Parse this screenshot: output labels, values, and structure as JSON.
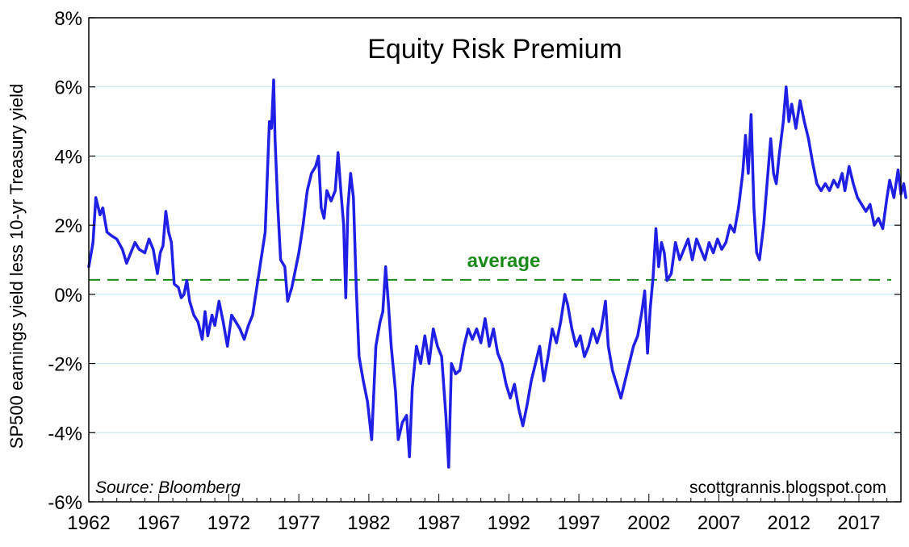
{
  "chart_data": {
    "type": "line",
    "title": "Equity Risk Premium",
    "ylabel": "SP500 earnings yield less 10-yr Treasury yield",
    "xlabel": "",
    "ylim": [
      -6,
      8
    ],
    "xlim": [
      1962,
      2020
    ],
    "y_ticks": [
      -6,
      -4,
      -2,
      0,
      2,
      4,
      6,
      8
    ],
    "y_tick_labels": [
      "-6%",
      "-4%",
      "-2%",
      "0%",
      "2%",
      "4%",
      "6%",
      "8%"
    ],
    "x_ticks": [
      1962,
      1967,
      1972,
      1977,
      1982,
      1987,
      1992,
      1997,
      2002,
      2007,
      2012,
      2017
    ],
    "x_tick_labels": [
      "1962",
      "1967",
      "1972",
      "1977",
      "1982",
      "1987",
      "1992",
      "1997",
      "2002",
      "2007",
      "2012",
      "2017"
    ],
    "grid": "horizontal",
    "source_note": "Source: Bloomberg",
    "credit": "scottgrannis.blogspot.com",
    "average": {
      "label": "average",
      "value": 0.42,
      "color": "#1a8a1a"
    },
    "series": [
      {
        "color": "#1f1fe6",
        "points": [
          [
            1962.0,
            0.8
          ],
          [
            1962.3,
            1.5
          ],
          [
            1962.5,
            2.8
          ],
          [
            1962.8,
            2.3
          ],
          [
            1963.0,
            2.5
          ],
          [
            1963.3,
            1.8
          ],
          [
            1963.6,
            1.7
          ],
          [
            1964.0,
            1.6
          ],
          [
            1964.4,
            1.3
          ],
          [
            1964.7,
            0.9
          ],
          [
            1965.0,
            1.2
          ],
          [
            1965.3,
            1.5
          ],
          [
            1965.6,
            1.3
          ],
          [
            1966.0,
            1.2
          ],
          [
            1966.3,
            1.6
          ],
          [
            1966.6,
            1.3
          ],
          [
            1966.9,
            0.6
          ],
          [
            1967.1,
            1.2
          ],
          [
            1967.3,
            1.4
          ],
          [
            1967.5,
            2.4
          ],
          [
            1967.7,
            1.8
          ],
          [
            1967.9,
            1.5
          ],
          [
            1968.1,
            0.3
          ],
          [
            1968.4,
            0.2
          ],
          [
            1968.6,
            -0.1
          ],
          [
            1968.8,
            0.0
          ],
          [
            1969.0,
            0.4
          ],
          [
            1969.2,
            -0.2
          ],
          [
            1969.5,
            -0.6
          ],
          [
            1969.8,
            -0.8
          ],
          [
            1970.1,
            -1.3
          ],
          [
            1970.3,
            -0.5
          ],
          [
            1970.5,
            -1.2
          ],
          [
            1970.8,
            -0.6
          ],
          [
            1971.0,
            -0.9
          ],
          [
            1971.3,
            -0.2
          ],
          [
            1971.6,
            -0.8
          ],
          [
            1971.9,
            -1.5
          ],
          [
            1972.2,
            -0.6
          ],
          [
            1972.5,
            -0.8
          ],
          [
            1972.8,
            -1.0
          ],
          [
            1973.1,
            -1.3
          ],
          [
            1973.4,
            -0.9
          ],
          [
            1973.7,
            -0.6
          ],
          [
            1974.0,
            0.2
          ],
          [
            1974.3,
            1.0
          ],
          [
            1974.6,
            1.8
          ],
          [
            1974.9,
            5.0
          ],
          [
            1975.05,
            4.8
          ],
          [
            1975.2,
            6.2
          ],
          [
            1975.3,
            4.5
          ],
          [
            1975.5,
            2.5
          ],
          [
            1975.7,
            1.0
          ],
          [
            1976.0,
            0.8
          ],
          [
            1976.2,
            -0.2
          ],
          [
            1976.5,
            0.2
          ],
          [
            1976.8,
            0.8
          ],
          [
            1977.0,
            1.2
          ],
          [
            1977.3,
            2.0
          ],
          [
            1977.6,
            3.0
          ],
          [
            1977.9,
            3.5
          ],
          [
            1978.2,
            3.7
          ],
          [
            1978.4,
            4.0
          ],
          [
            1978.6,
            2.5
          ],
          [
            1978.8,
            2.2
          ],
          [
            1979.0,
            3.0
          ],
          [
            1979.3,
            2.7
          ],
          [
            1979.6,
            3.0
          ],
          [
            1979.8,
            4.1
          ],
          [
            1980.0,
            3.0
          ],
          [
            1980.2,
            2.0
          ],
          [
            1980.35,
            -0.1
          ],
          [
            1980.5,
            2.5
          ],
          [
            1980.7,
            3.5
          ],
          [
            1980.9,
            2.8
          ],
          [
            1981.1,
            0.2
          ],
          [
            1981.3,
            -1.8
          ],
          [
            1981.6,
            -2.5
          ],
          [
            1981.9,
            -3.1
          ],
          [
            1982.2,
            -4.2
          ],
          [
            1982.5,
            -1.5
          ],
          [
            1982.8,
            -0.8
          ],
          [
            1983.0,
            -0.5
          ],
          [
            1983.2,
            0.8
          ],
          [
            1983.4,
            -0.3
          ],
          [
            1983.6,
            -1.5
          ],
          [
            1983.9,
            -2.8
          ],
          [
            1984.1,
            -4.2
          ],
          [
            1984.4,
            -3.7
          ],
          [
            1984.7,
            -3.5
          ],
          [
            1984.9,
            -4.7
          ],
          [
            1985.1,
            -2.7
          ],
          [
            1985.4,
            -1.5
          ],
          [
            1985.7,
            -2.0
          ],
          [
            1986.0,
            -1.2
          ],
          [
            1986.3,
            -2.0
          ],
          [
            1986.6,
            -1.0
          ],
          [
            1986.9,
            -1.5
          ],
          [
            1987.2,
            -1.8
          ],
          [
            1987.5,
            -3.5
          ],
          [
            1987.7,
            -5.0
          ],
          [
            1987.9,
            -2.0
          ],
          [
            1988.2,
            -2.3
          ],
          [
            1988.5,
            -2.2
          ],
          [
            1988.8,
            -1.5
          ],
          [
            1989.1,
            -1.0
          ],
          [
            1989.4,
            -1.3
          ],
          [
            1989.7,
            -1.0
          ],
          [
            1990.0,
            -1.4
          ],
          [
            1990.3,
            -0.7
          ],
          [
            1990.6,
            -1.5
          ],
          [
            1990.9,
            -1.0
          ],
          [
            1991.2,
            -1.7
          ],
          [
            1991.5,
            -2.0
          ],
          [
            1991.8,
            -2.6
          ],
          [
            1992.1,
            -3.0
          ],
          [
            1992.4,
            -2.6
          ],
          [
            1992.7,
            -3.3
          ],
          [
            1993.0,
            -3.8
          ],
          [
            1993.3,
            -3.2
          ],
          [
            1993.6,
            -2.5
          ],
          [
            1993.9,
            -2.0
          ],
          [
            1994.2,
            -1.5
          ],
          [
            1994.5,
            -2.5
          ],
          [
            1994.8,
            -1.8
          ],
          [
            1995.1,
            -1.0
          ],
          [
            1995.4,
            -1.4
          ],
          [
            1995.7,
            -0.8
          ],
          [
            1996.0,
            0.0
          ],
          [
            1996.2,
            -0.3
          ],
          [
            1996.5,
            -1.0
          ],
          [
            1996.8,
            -1.5
          ],
          [
            1997.1,
            -1.2
          ],
          [
            1997.4,
            -1.8
          ],
          [
            1997.7,
            -1.5
          ],
          [
            1998.0,
            -1.0
          ],
          [
            1998.3,
            -1.4
          ],
          [
            1998.6,
            -1.0
          ],
          [
            1998.9,
            -0.2
          ],
          [
            1999.1,
            -1.5
          ],
          [
            1999.4,
            -2.2
          ],
          [
            1999.7,
            -2.6
          ],
          [
            2000.0,
            -3.0
          ],
          [
            2000.3,
            -2.5
          ],
          [
            2000.6,
            -2.0
          ],
          [
            2000.9,
            -1.5
          ],
          [
            2001.2,
            -1.2
          ],
          [
            2001.5,
            -0.5
          ],
          [
            2001.7,
            0.1
          ],
          [
            2001.9,
            -1.7
          ],
          [
            2002.1,
            -0.4
          ],
          [
            2002.3,
            0.5
          ],
          [
            2002.5,
            1.9
          ],
          [
            2002.7,
            0.8
          ],
          [
            2002.9,
            1.5
          ],
          [
            2003.1,
            1.2
          ],
          [
            2003.3,
            0.4
          ],
          [
            2003.6,
            0.6
          ],
          [
            2003.9,
            1.5
          ],
          [
            2004.2,
            1.0
          ],
          [
            2004.5,
            1.3
          ],
          [
            2004.8,
            1.6
          ],
          [
            2005.1,
            1.0
          ],
          [
            2005.4,
            1.6
          ],
          [
            2005.7,
            1.3
          ],
          [
            2006.0,
            1.0
          ],
          [
            2006.3,
            1.5
          ],
          [
            2006.6,
            1.2
          ],
          [
            2006.9,
            1.6
          ],
          [
            2007.2,
            1.3
          ],
          [
            2007.5,
            1.5
          ],
          [
            2007.8,
            2.0
          ],
          [
            2008.1,
            1.8
          ],
          [
            2008.4,
            2.5
          ],
          [
            2008.7,
            3.5
          ],
          [
            2008.9,
            4.6
          ],
          [
            2009.1,
            3.5
          ],
          [
            2009.3,
            5.2
          ],
          [
            2009.5,
            2.5
          ],
          [
            2009.7,
            1.2
          ],
          [
            2009.9,
            1.0
          ],
          [
            2010.2,
            2.0
          ],
          [
            2010.5,
            3.5
          ],
          [
            2010.7,
            4.5
          ],
          [
            2010.9,
            3.5
          ],
          [
            2011.1,
            3.2
          ],
          [
            2011.3,
            4.0
          ],
          [
            2011.6,
            5.0
          ],
          [
            2011.8,
            6.0
          ],
          [
            2012.0,
            5.0
          ],
          [
            2012.2,
            5.5
          ],
          [
            2012.5,
            4.8
          ],
          [
            2012.8,
            5.6
          ],
          [
            2013.1,
            5.0
          ],
          [
            2013.4,
            4.5
          ],
          [
            2013.7,
            3.8
          ],
          [
            2014.0,
            3.2
          ],
          [
            2014.3,
            3.0
          ],
          [
            2014.6,
            3.2
          ],
          [
            2014.9,
            3.0
          ],
          [
            2015.2,
            3.3
          ],
          [
            2015.5,
            3.1
          ],
          [
            2015.8,
            3.5
          ],
          [
            2016.0,
            3.0
          ],
          [
            2016.3,
            3.7
          ],
          [
            2016.6,
            3.2
          ],
          [
            2016.9,
            2.8
          ],
          [
            2017.2,
            2.6
          ],
          [
            2017.5,
            2.4
          ],
          [
            2017.8,
            2.6
          ],
          [
            2018.1,
            2.0
          ],
          [
            2018.4,
            2.2
          ],
          [
            2018.7,
            1.9
          ],
          [
            2019.0,
            2.8
          ],
          [
            2019.2,
            3.3
          ],
          [
            2019.5,
            2.8
          ],
          [
            2019.8,
            3.6
          ],
          [
            2020.0,
            2.9
          ],
          [
            2020.2,
            3.2
          ],
          [
            2020.35,
            2.8
          ]
        ]
      }
    ]
  }
}
